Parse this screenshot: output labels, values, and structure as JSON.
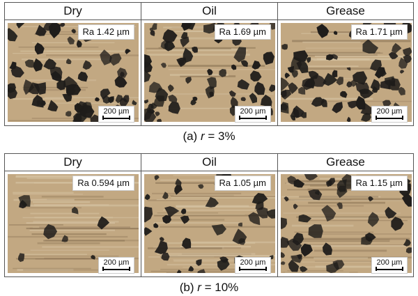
{
  "rows": [
    {
      "caption_prefix": "(a) ",
      "caption_var": "r",
      "caption_suffix": " = 3%",
      "panels": [
        {
          "header": "Dry",
          "ra": "Ra 1.42 µm",
          "scale": "200 µm"
        },
        {
          "header": "Oil",
          "ra": "Ra 1.69 µm",
          "scale": "200 µm"
        },
        {
          "header": "Grease",
          "ra": "Ra 1.71 µm",
          "scale": "200 µm"
        }
      ]
    },
    {
      "caption_prefix": "(b) ",
      "caption_var": "r",
      "caption_suffix": " = 10%",
      "panels": [
        {
          "header": "Dry",
          "ra": "Ra 0.594 µm",
          "scale": "200 µm"
        },
        {
          "header": "Oil",
          "ra": "Ra 1.05 µm",
          "scale": "200 µm"
        },
        {
          "header": "Grease",
          "ra": "Ra 1.15 µm",
          "scale": "200 µm"
        }
      ]
    }
  ],
  "colors": {
    "surface": "#c2a882",
    "pit": "#1e1c1a",
    "border": "#555555"
  }
}
